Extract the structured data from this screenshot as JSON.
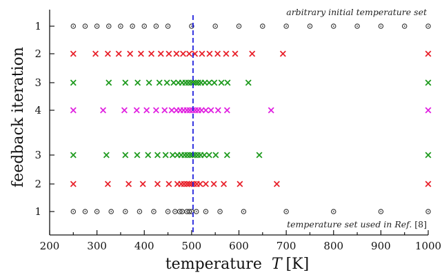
{
  "chart_data": {
    "type": "scatter",
    "title": "",
    "xlabel": {
      "word": "temperature",
      "symbol": "T",
      "unit": "[K]"
    },
    "ylabel": "feedback iteration",
    "xlim": [
      200,
      1000
    ],
    "xticks": [
      200,
      300,
      400,
      500,
      600,
      700,
      800,
      900,
      1000
    ],
    "reference_line": {
      "x": 503,
      "style": "dashed",
      "color": "#1f1fdd"
    },
    "annotations": {
      "top": "arbitrary initial temperature set",
      "bottom_prefix": "temperature set used in ",
      "bottom_ref_italic": "Ref.",
      "bottom_ref_number": " [8]"
    },
    "rows": [
      {
        "label": "1",
        "marker": "circle",
        "color": "#333333",
        "x": [
          250,
          275,
          300,
          325,
          350,
          375,
          400,
          425,
          450,
          500,
          550,
          600,
          650,
          700,
          750,
          800,
          850,
          900,
          950,
          1000
        ]
      },
      {
        "label": "2",
        "marker": "x",
        "color": "#e8202a",
        "x": [
          250,
          297,
          323,
          346,
          370,
          393,
          415,
          435,
          452,
          468,
          482,
          495,
          507,
          522,
          538,
          555,
          573,
          592,
          628,
          693,
          1000
        ]
      },
      {
        "label": "3",
        "marker": "x",
        "color": "#1e9a1e",
        "x": [
          250,
          325,
          360,
          386,
          410,
          432,
          448,
          462,
          472,
          480,
          487,
          493,
          499,
          504,
          509,
          514,
          520,
          528,
          537,
          548,
          563,
          576,
          620,
          1000
        ]
      },
      {
        "label": "4",
        "marker": "x",
        "color": "#e020e0",
        "x": [
          250,
          313,
          358,
          384,
          405,
          425,
          443,
          458,
          468,
          476,
          483,
          490,
          496,
          502,
          508,
          514,
          521,
          530,
          541,
          556,
          575,
          668,
          1000
        ]
      },
      {
        "label": "3",
        "marker": "x",
        "color": "#1e9a1e",
        "x": [
          250,
          320,
          360,
          385,
          408,
          428,
          445,
          460,
          470,
          478,
          485,
          491,
          497,
          502,
          507,
          513,
          519,
          527,
          537,
          551,
          575,
          643,
          1000
        ]
      },
      {
        "label": "2",
        "marker": "x",
        "color": "#e8202a",
        "x": [
          250,
          323,
          367,
          397,
          428,
          452,
          470,
          478,
          484,
          490,
          495,
          500,
          505,
          511,
          518,
          530,
          547,
          568,
          602,
          680,
          1000
        ]
      },
      {
        "label": "1",
        "marker": "circle",
        "color": "#333333",
        "x": [
          250,
          275,
          300,
          330,
          360,
          390,
          420,
          450,
          465,
          475,
          480,
          490,
          495,
          500,
          510,
          530,
          560,
          610,
          700,
          800,
          900,
          1000
        ]
      }
    ]
  }
}
